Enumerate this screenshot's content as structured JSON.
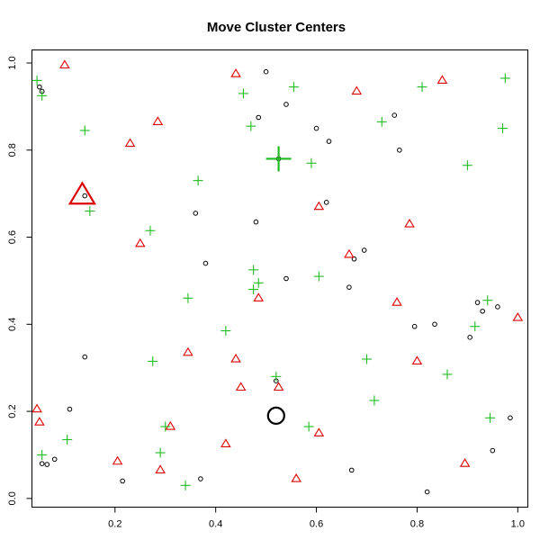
{
  "chart_data": {
    "type": "scatter",
    "title": "Move Cluster Centers",
    "xlabel": "",
    "ylabel": "",
    "xlim": [
      0.035,
      1.02
    ],
    "ylim": [
      -0.02,
      1.03
    ],
    "x_ticks": [
      0.2,
      0.4,
      0.6,
      0.8,
      1.0
    ],
    "x_tick_labels": [
      "0.2",
      "0.4",
      "0.6",
      "0.8",
      "1.0"
    ],
    "y_ticks": [
      0.0,
      0.2,
      0.4,
      0.6,
      0.8,
      1.0
    ],
    "y_tick_labels": [
      "0.0",
      "0.2",
      "0.4",
      "0.6",
      "0.8",
      "1.0"
    ],
    "grid": false,
    "legend": "none",
    "colors": {
      "black": "#000000",
      "red": "#dd0000",
      "green": "#22bb22"
    },
    "series": [
      {
        "marker": "circle",
        "color": "#000000",
        "points": [
          [
            0.05,
            0.945
          ],
          [
            0.055,
            0.935
          ],
          [
            0.055,
            0.08
          ],
          [
            0.065,
            0.078
          ],
          [
            0.08,
            0.09
          ],
          [
            0.11,
            0.205
          ],
          [
            0.14,
            0.325
          ],
          [
            0.14,
            0.695
          ],
          [
            0.215,
            0.04
          ],
          [
            0.36,
            0.655
          ],
          [
            0.37,
            0.045
          ],
          [
            0.38,
            0.54
          ],
          [
            0.485,
            0.875
          ],
          [
            0.48,
            0.635
          ],
          [
            0.5,
            0.98
          ],
          [
            0.54,
            0.505
          ],
          [
            0.54,
            0.905
          ],
          [
            0.525,
            0.78
          ],
          [
            0.52,
            0.27
          ],
          [
            0.6,
            0.85
          ],
          [
            0.625,
            0.82
          ],
          [
            0.62,
            0.68
          ],
          [
            0.665,
            0.485
          ],
          [
            0.675,
            0.55
          ],
          [
            0.695,
            0.57
          ],
          [
            0.755,
            0.88
          ],
          [
            0.765,
            0.8
          ],
          [
            0.67,
            0.065
          ],
          [
            0.795,
            0.395
          ],
          [
            0.835,
            0.4
          ],
          [
            0.82,
            0.015
          ],
          [
            0.905,
            0.37
          ],
          [
            0.92,
            0.45
          ],
          [
            0.93,
            0.43
          ],
          [
            0.95,
            0.11
          ],
          [
            0.96,
            0.44
          ],
          [
            0.985,
            0.185
          ]
        ]
      },
      {
        "marker": "triangle",
        "color": "#dd0000",
        "points": [
          [
            0.045,
            0.205
          ],
          [
            0.05,
            0.175
          ],
          [
            0.1,
            0.995
          ],
          [
            0.205,
            0.085
          ],
          [
            0.23,
            0.815
          ],
          [
            0.25,
            0.585
          ],
          [
            0.285,
            0.865
          ],
          [
            0.29,
            0.065
          ],
          [
            0.31,
            0.165
          ],
          [
            0.345,
            0.335
          ],
          [
            0.42,
            0.125
          ],
          [
            0.44,
            0.975
          ],
          [
            0.44,
            0.32
          ],
          [
            0.45,
            0.255
          ],
          [
            0.485,
            0.46
          ],
          [
            0.525,
            0.255
          ],
          [
            0.56,
            0.045
          ],
          [
            0.605,
            0.67
          ],
          [
            0.605,
            0.15
          ],
          [
            0.665,
            0.56
          ],
          [
            0.68,
            0.935
          ],
          [
            0.76,
            0.45
          ],
          [
            0.785,
            0.63
          ],
          [
            0.8,
            0.315
          ],
          [
            0.85,
            0.96
          ],
          [
            0.895,
            0.08
          ],
          [
            1.0,
            0.415
          ]
        ]
      },
      {
        "marker": "plus",
        "color": "#22bb22",
        "points": [
          [
            0.045,
            0.96
          ],
          [
            0.055,
            0.925
          ],
          [
            0.055,
            0.1
          ],
          [
            0.105,
            0.135
          ],
          [
            0.14,
            0.845
          ],
          [
            0.15,
            0.66
          ],
          [
            0.27,
            0.615
          ],
          [
            0.275,
            0.315
          ],
          [
            0.29,
            0.105
          ],
          [
            0.3,
            0.165
          ],
          [
            0.34,
            0.03
          ],
          [
            0.345,
            0.46
          ],
          [
            0.365,
            0.73
          ],
          [
            0.42,
            0.385
          ],
          [
            0.455,
            0.93
          ],
          [
            0.47,
            0.855
          ],
          [
            0.475,
            0.525
          ],
          [
            0.475,
            0.48
          ],
          [
            0.485,
            0.495
          ],
          [
            0.52,
            0.28
          ],
          [
            0.555,
            0.945
          ],
          [
            0.585,
            0.165
          ],
          [
            0.59,
            0.77
          ],
          [
            0.605,
            0.51
          ],
          [
            0.7,
            0.32
          ],
          [
            0.715,
            0.225
          ],
          [
            0.73,
            0.865
          ],
          [
            0.81,
            0.945
          ],
          [
            0.86,
            0.285
          ],
          [
            0.9,
            0.765
          ],
          [
            0.915,
            0.395
          ],
          [
            0.94,
            0.455
          ],
          [
            0.945,
            0.185
          ],
          [
            0.97,
            0.85
          ],
          [
            0.975,
            0.965
          ]
        ]
      }
    ],
    "centers": [
      {
        "marker": "triangle",
        "color": "#dd0000",
        "x": 0.135,
        "y": 0.695
      },
      {
        "marker": "plus",
        "color": "#22bb22",
        "x": 0.525,
        "y": 0.78
      },
      {
        "marker": "circle",
        "color": "#000000",
        "x": 0.52,
        "y": 0.19
      }
    ]
  }
}
